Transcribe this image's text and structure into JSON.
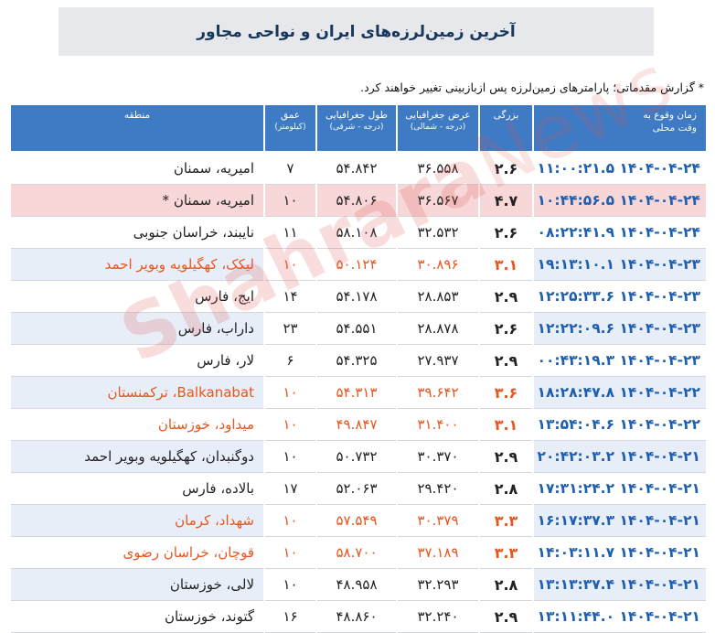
{
  "title": "آخرین زمین‌لرزه‌های ایران و نواحی مجاور",
  "note": "* گزارش مقدماتی؛ پارامترهای زمین‌لرزه پس ازبازبینی تغییر خواهند کرد.",
  "watermark": {
    "main": "Shahrara",
    "suffix": "News"
  },
  "colors": {
    "header": "#3e7bc4",
    "time_text": "#1f5fb0",
    "highlight_text": "#e8561e",
    "highlight_row": "#f7d7d8",
    "alt_row": "#e8eef8"
  },
  "headers": {
    "time": "زمان وقوع به",
    "time_sub": "وقت محلی",
    "magnitude": "بزرگی",
    "latitude": "عرض جغرافیایی",
    "latitude_sub": "(درجه - شمالی)",
    "longitude": "طول جغرافیایی",
    "longitude_sub": "(درجه - شرقی)",
    "depth": "عمق",
    "depth_sub": "(کیلومتر)",
    "region": "منطقه"
  },
  "rows": [
    {
      "time": "۱۴۰۴-۰۴-۲۴ ۱۱:۰۰:۲۱.۵",
      "mag": "۲.۶",
      "lat": "۳۶.۵۵۸",
      "lon": "۵۴.۸۴۲",
      "depth": "۷",
      "region": "امیریه، سمنان",
      "style": ""
    },
    {
      "time": "۱۴۰۴-۰۴-۲۴ ۱۰:۴۴:۵۶.۵",
      "mag": "۴.۷",
      "lat": "۳۶.۵۶۷",
      "lon": "۵۴.۸۰۶",
      "depth": "۱۰",
      "region": "امیریه، سمنان *",
      "style": "red"
    },
    {
      "time": "۱۴۰۴-۰۴-۲۴ ۰۸:۲۲:۴۱.۹",
      "mag": "۲.۶",
      "lat": "۳۲.۵۳۲",
      "lon": "۵۸.۱۰۸",
      "depth": "۱۱",
      "region": "نایبند، خراسان جنوبی",
      "style": ""
    },
    {
      "time": "۱۴۰۴-۰۴-۲۳ ۱۹:۱۳:۱۰.۱",
      "mag": "۳.۱",
      "lat": "۳۰.۸۹۶",
      "lon": "۵۰.۱۲۴",
      "depth": "۱۰",
      "region": "لیکک، کهگیلویه وبویر احمد",
      "style": "orange alt"
    },
    {
      "time": "۱۴۰۴-۰۴-۲۳ ۱۲:۲۵:۳۳.۶",
      "mag": "۲.۹",
      "lat": "۲۸.۸۵۳",
      "lon": "۵۴.۱۷۸",
      "depth": "۱۴",
      "region": "ایج، فارس",
      "style": ""
    },
    {
      "time": "۱۴۰۴-۰۴-۲۳ ۱۲:۲۲:۰۹.۶",
      "mag": "۲.۶",
      "lat": "۲۸.۸۷۸",
      "lon": "۵۴.۵۵۱",
      "depth": "۲۳",
      "region": "داراب، فارس",
      "style": "alt"
    },
    {
      "time": "۱۴۰۴-۰۴-۲۳ ۰۰:۴۳:۱۹.۳",
      "mag": "۲.۹",
      "lat": "۲۷.۹۳۷",
      "lon": "۵۴.۳۲۵",
      "depth": "۶",
      "region": "لار، فارس",
      "style": ""
    },
    {
      "time": "۱۴۰۴-۰۴-۲۲ ۱۸:۲۸:۴۷.۸",
      "mag": "۳.۶",
      "lat": "۳۹.۶۴۲",
      "lon": "۵۴.۳۱۳",
      "depth": "۱۰",
      "region": "Balkanabat، ترکمنستان",
      "style": "orange alt"
    },
    {
      "time": "۱۴۰۴-۰۴-۲۲ ۱۳:۵۴:۰۴.۶",
      "mag": "۳.۱",
      "lat": "۳۱.۴۰۰",
      "lon": "۴۹.۸۴۷",
      "depth": "۱۰",
      "region": "میداود، خوزستان",
      "style": "orange"
    },
    {
      "time": "۱۴۰۴-۰۴-۲۱ ۲۰:۴۲:۰۳.۲",
      "mag": "۲.۹",
      "lat": "۳۰.۳۷۰",
      "lon": "۵۰.۷۳۲",
      "depth": "۱۰",
      "region": "دوگنبدان، کهگیلویه وبویر احمد",
      "style": "alt"
    },
    {
      "time": "۱۴۰۴-۰۴-۲۱ ۱۷:۳۱:۲۴.۲",
      "mag": "۲.۸",
      "lat": "۲۹.۴۲۰",
      "lon": "۵۲.۰۶۳",
      "depth": "۱۷",
      "region": "بالاده، فارس",
      "style": ""
    },
    {
      "time": "۱۴۰۴-۰۴-۲۱ ۱۶:۱۷:۳۷.۳",
      "mag": "۳.۳",
      "lat": "۳۰.۳۷۹",
      "lon": "۵۷.۵۴۹",
      "depth": "۱۰",
      "region": "شهداد، کرمان",
      "style": "orange alt"
    },
    {
      "time": "۱۴۰۴-۰۴-۲۱ ۱۴:۰۳:۱۱.۷",
      "mag": "۳.۳",
      "lat": "۳۷.۱۸۹",
      "lon": "۵۸.۷۰۰",
      "depth": "۱۰",
      "region": "قوچان، خراسان رضوی",
      "style": "orange"
    },
    {
      "time": "۱۴۰۴-۰۴-۲۱ ۱۳:۱۳:۳۷.۴",
      "mag": "۲.۸",
      "lat": "۳۲.۲۹۳",
      "lon": "۴۸.۹۵۸",
      "depth": "۱۰",
      "region": "لالی، خوزستان",
      "style": "alt"
    },
    {
      "time": "۱۴۰۴-۰۴-۲۱ ۱۳:۱۱:۴۴.۰",
      "mag": "۲.۹",
      "lat": "۳۲.۲۴۰",
      "lon": "۴۸.۸۶۰",
      "depth": "۱۶",
      "region": "گتوند، خوزستان",
      "style": ""
    }
  ]
}
